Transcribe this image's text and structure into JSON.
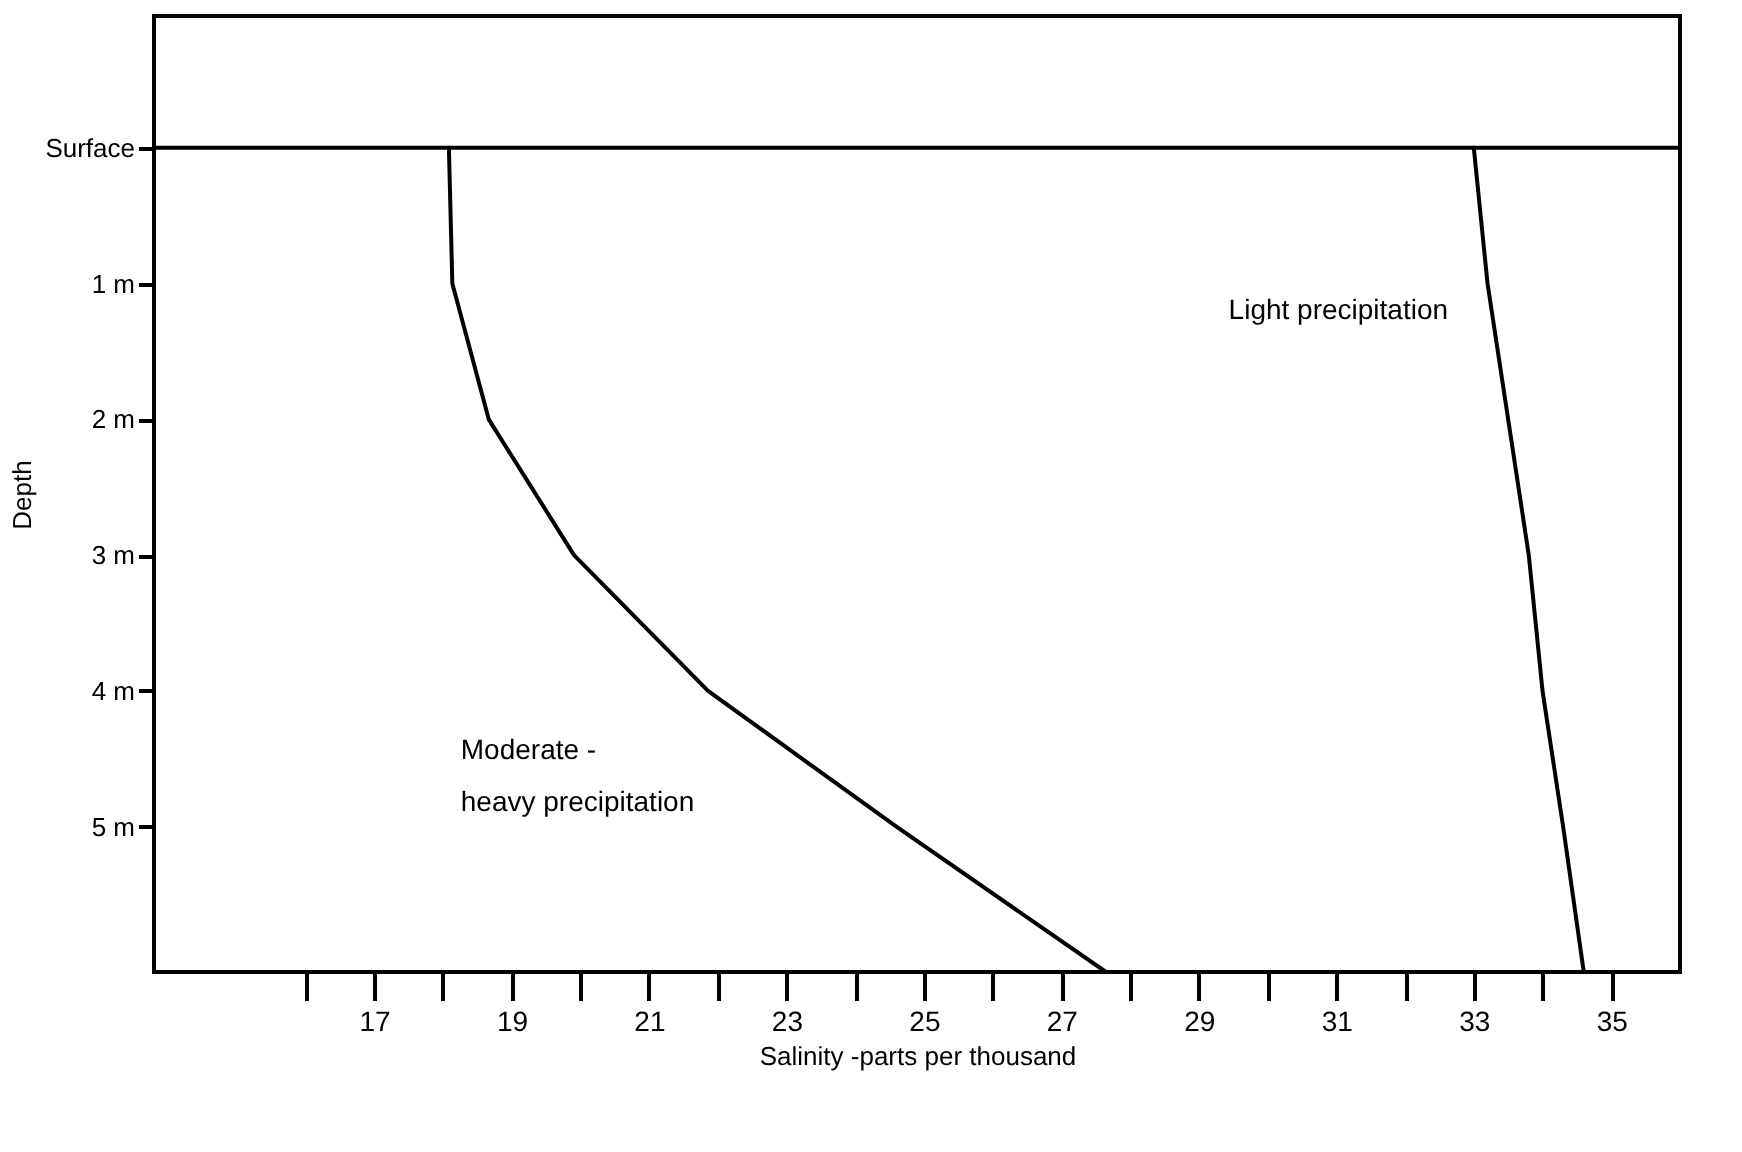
{
  "chart_data": {
    "type": "line",
    "xlabel": "Salinity -parts per thousand",
    "ylabel": "Depth",
    "series": [
      {
        "name": "Moderate -\nheavy precipitation",
        "color": "#000000",
        "x": [
          18.09,
          18.14,
          18.67,
          19.91,
          21.86,
          24.6,
          27.65
        ],
        "values": [
          0,
          1,
          2,
          3,
          4,
          5,
          6.07
        ]
      },
      {
        "name": "Light precipitation",
        "color": "#000000",
        "x": [
          33.0,
          33.2,
          33.5,
          33.8,
          34.0,
          34.3,
          34.6
        ],
        "values": [
          0,
          1,
          2,
          3,
          4,
          5,
          6.07
        ]
      }
    ],
    "xlim": [
      13.8,
      36
    ],
    "ylim": [
      6.07,
      -0.97
    ],
    "xticks": [
      {
        "value": 16,
        "label": null
      },
      17,
      {
        "value": 18,
        "label": null
      },
      19,
      {
        "value": 20,
        "label": null
      },
      21,
      {
        "value": 22,
        "label": null
      },
      23,
      {
        "value": 24,
        "label": null
      },
      25,
      {
        "value": 26,
        "label": null
      },
      27,
      {
        "value": 28,
        "label": null
      },
      29,
      {
        "value": 30,
        "label": null
      },
      31,
      {
        "value": 32,
        "label": null
      },
      33,
      {
        "value": 34,
        "label": null
      },
      35
    ],
    "yticks": [
      {
        "value": 0,
        "label": "Surface"
      },
      {
        "value": 1,
        "label": "1 m"
      },
      {
        "value": 2,
        "label": "2 m"
      },
      {
        "value": 3,
        "label": "3 m"
      },
      {
        "value": 4,
        "label": "4 m"
      },
      {
        "value": 5,
        "label": "5 m"
      }
    ],
    "ref_lines": [
      {
        "axis": "y",
        "value": 0,
        "color": "#000000"
      }
    ],
    "grid": false,
    "marker": "none",
    "line_style": "solid"
  }
}
